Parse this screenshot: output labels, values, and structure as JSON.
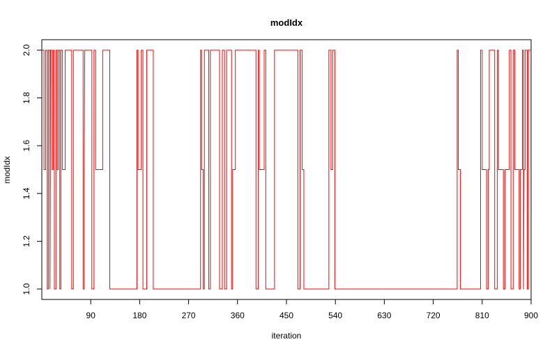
{
  "chart_data": {
    "type": "line",
    "title": "modIdx",
    "xlabel": "iteration",
    "ylabel": "modIdx",
    "xlim": [
      0,
      900
    ],
    "ylim": [
      1.0,
      2.0
    ],
    "xticks": [
      90,
      180,
      270,
      360,
      450,
      540,
      630,
      720,
      810,
      900
    ],
    "yticks": [
      1.0,
      1.2,
      1.4,
      1.6,
      1.8,
      2.0
    ],
    "ytick_labels": [
      "1.0",
      "1.2",
      "1.4",
      "1.6",
      "1.8",
      "2.0"
    ],
    "grid": false,
    "colors": {
      "series": "#ff0000",
      "axes": "#000000"
    },
    "series": [
      {
        "x": [
          1,
          4,
          7,
          10,
          12,
          15,
          16,
          19,
          21,
          23,
          26,
          28,
          30,
          33,
          35,
          38,
          43,
          55,
          58,
          76,
          78,
          79,
          92,
          96,
          99,
          112,
          125,
          175,
          177,
          183,
          186,
          193,
          205,
          292,
          294,
          297,
          299,
          307,
          310,
          327,
          332,
          336,
          340,
          349,
          351,
          356,
          394,
          398,
          400,
          409,
          412,
          428,
          471,
          475,
          479,
          482,
          528,
          532,
          535,
          539,
          764,
          766,
          770,
          807,
          810,
          818,
          821,
          823,
          833,
          838,
          840,
          849,
          852,
          860,
          863,
          867,
          870,
          878,
          880,
          884,
          886,
          887,
          889,
          893,
          895,
          899
        ],
        "y": [
          2,
          1.5,
          2,
          1,
          2,
          1,
          2,
          1.5,
          2,
          1,
          2,
          1.5,
          2,
          1,
          2,
          1.5,
          2,
          1,
          2,
          1,
          1.5,
          2,
          1,
          2,
          1.5,
          2,
          1,
          2,
          1.5,
          2,
          1,
          2,
          1,
          2,
          1.5,
          1,
          2,
          1,
          2,
          1,
          2,
          1,
          2,
          1,
          1.5,
          2,
          1,
          2,
          1.5,
          2,
          1,
          2,
          1,
          2,
          1.5,
          1,
          2,
          1.5,
          2,
          1,
          2,
          1.5,
          1,
          2,
          1.5,
          1,
          1.5,
          2,
          1,
          2,
          1.5,
          1,
          1.5,
          2,
          1,
          2,
          1.5,
          1,
          1.5,
          2,
          1,
          1.5,
          2,
          1,
          2,
          2
        ]
      }
    ]
  }
}
